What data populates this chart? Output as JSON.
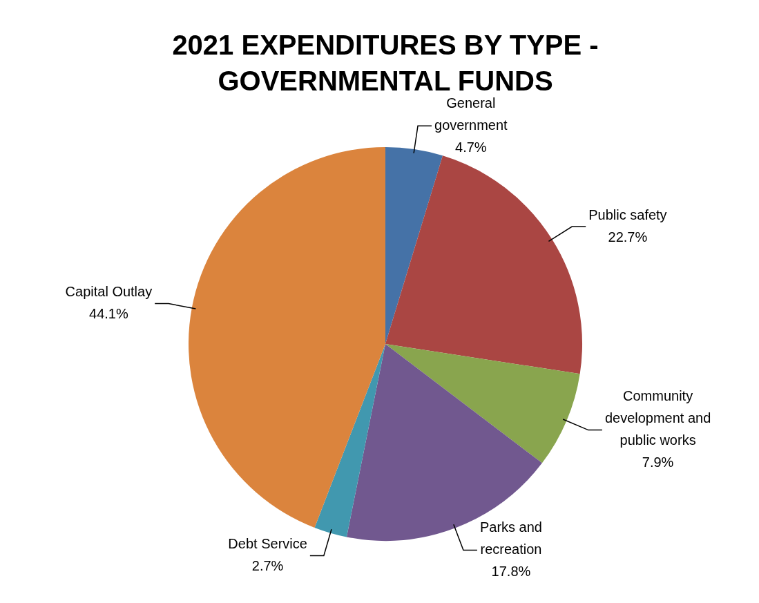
{
  "chart_data": {
    "type": "pie",
    "title": "2021 EXPENDITURES BY TYPE - GOVERNMENTAL FUNDS",
    "categories": [
      "General government",
      "Public safety",
      "Community development and public works",
      "Parks and recreation",
      "Debt Service",
      "Capital Outlay"
    ],
    "values": [
      4.7,
      22.7,
      7.9,
      17.8,
      2.7,
      44.1
    ],
    "value_labels": [
      "4.7%",
      "22.7%",
      "7.9%",
      "17.8%",
      "2.7%",
      "44.1%"
    ],
    "colors": [
      "#4572a7",
      "#aa4643",
      "#89a54e",
      "#71588f",
      "#4198af",
      "#db843d"
    ],
    "legend": false
  }
}
